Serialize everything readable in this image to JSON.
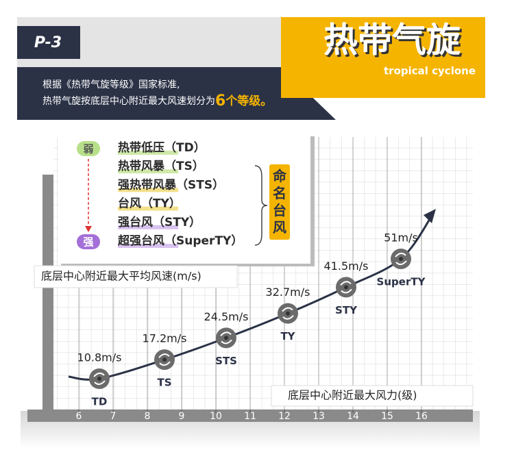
{
  "header": {
    "code": "P-3",
    "title": "热带气旋",
    "subtitle": "tropical cyclone",
    "desc_line1": "根据《热带气旋等级》国家标准,",
    "desc_line2_a": "热带气旋按底层中心附近最大风速划分为",
    "desc_line2_num": "6",
    "desc_line2_b": "个等级。"
  },
  "legend": {
    "weak": "弱",
    "strong": "强",
    "named": "命名台风",
    "levels": [
      "热带低压（TD）",
      "热带风暴（TS）",
      "强热带风暴（STS）",
      "台风（TY）",
      "强台风（STY）",
      "超强台风（SuperTY）"
    ]
  },
  "chart_data": {
    "type": "scatter",
    "y_label": "底层中心附近最大平均风速(m/s)",
    "x_label": "底层中心附近最大风力(级)",
    "categories": [
      "TD",
      "TS",
      "STS",
      "TY",
      "STY",
      "SuperTY"
    ],
    "x": [
      6.6,
      8.5,
      10.3,
      12.1,
      13.8,
      15.4
    ],
    "values": [
      10.8,
      17.2,
      24.5,
      32.7,
      41.5,
      51
    ],
    "value_labels": [
      "10.8m/s",
      "17.2m/s",
      "24.5m/s",
      "32.7m/s",
      "41.5m/s",
      "51m/s"
    ],
    "xlim": [
      4.5,
      17.5
    ],
    "xticks": [
      6,
      7,
      8,
      9,
      10,
      11,
      12,
      13,
      14,
      15,
      16
    ],
    "color": "#6b6b6b",
    "grid": true
  }
}
